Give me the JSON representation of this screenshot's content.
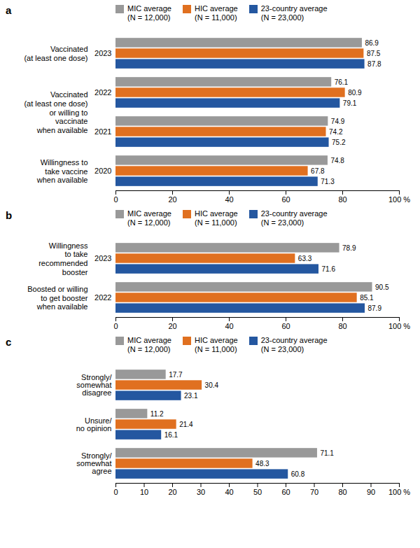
{
  "chart_data": [
    {
      "type": "bar",
      "orientation": "horizontal",
      "title": "a",
      "categories": [
        "2023",
        "2022",
        "2021",
        "2020"
      ],
      "series": [
        {
          "name": "MIC average\n(N = 12,000)",
          "color": "#999999",
          "values": [
            86.9,
            76.1,
            74.9,
            74.8
          ]
        },
        {
          "name": "HIC average\n(N = 11,000)",
          "color": "#E07020",
          "values": [
            87.5,
            80.9,
            74.2,
            67.8
          ]
        },
        {
          "name": "23-country average\n(N = 23,000)",
          "color": "#2457A0",
          "values": [
            87.8,
            79.1,
            75.2,
            71.3
          ]
        }
      ],
      "annotations": [
        {
          "text": "Vaccinated\n(at least one dose)",
          "categories": [
            "2023"
          ]
        },
        {
          "text": "Vaccinated\n(at least one dose)\nor willing to\nvaccinate\nwhen available",
          "categories": [
            "2022",
            "2021"
          ]
        },
        {
          "text": "Willingness to\ntake vaccine\nwhen available",
          "categories": [
            "2020"
          ]
        }
      ],
      "xlim": [
        0,
        100
      ],
      "xticks": [
        0,
        20,
        40,
        60,
        80,
        {
          "value": 100,
          "label": "100 %"
        }
      ],
      "data_labels": true,
      "legend": "upper left",
      "grid": false
    },
    {
      "type": "bar",
      "orientation": "horizontal",
      "title": "b",
      "categories": [
        "2023",
        "2022"
      ],
      "series": [
        {
          "name": "MIC average\n(N = 12,000)",
          "color": "#999999",
          "values": [
            78.9,
            90.5
          ]
        },
        {
          "name": "HIC average\n(N = 11,000)",
          "color": "#E07020",
          "values": [
            63.3,
            85.1
          ]
        },
        {
          "name": "23-country average\n(N = 23,000)",
          "color": "#2457A0",
          "values": [
            71.6,
            87.9
          ]
        }
      ],
      "annotations": [
        {
          "text": "Willingness\nto take\nrecommended\nbooster",
          "categories": [
            "2023"
          ]
        },
        {
          "text": "Boosted or willing\nto get booster\nwhen available",
          "categories": [
            "2022"
          ]
        }
      ],
      "xlim": [
        0,
        100
      ],
      "xticks": [
        0,
        20,
        40,
        60,
        80,
        {
          "value": 100,
          "label": "100 %"
        }
      ],
      "data_labels": true,
      "legend": "upper left",
      "grid": false
    },
    {
      "type": "bar",
      "orientation": "horizontal",
      "title": "c",
      "categories": [
        "Strongly/\nsomewhat\ndisagree",
        "Unsure/\nno opinion",
        "Strongly/\nsomewhat\nagree"
      ],
      "series": [
        {
          "name": "MIC average\n(N = 12,000)",
          "color": "#999999",
          "values": [
            17.7,
            11.2,
            71.1
          ]
        },
        {
          "name": "HIC average\n(N = 11,000)",
          "color": "#E07020",
          "values": [
            30.4,
            21.4,
            48.3
          ]
        },
        {
          "name": "23-country average\n(N = 23,000)",
          "color": "#2457A0",
          "values": [
            23.1,
            16.1,
            60.8
          ]
        }
      ],
      "xlim": [
        0,
        100
      ],
      "xticks": [
        0,
        10,
        20,
        30,
        40,
        50,
        60,
        70,
        80,
        90,
        {
          "value": 100,
          "label": "100 %"
        }
      ],
      "data_labels": true,
      "legend": "upper left",
      "grid": false
    }
  ]
}
